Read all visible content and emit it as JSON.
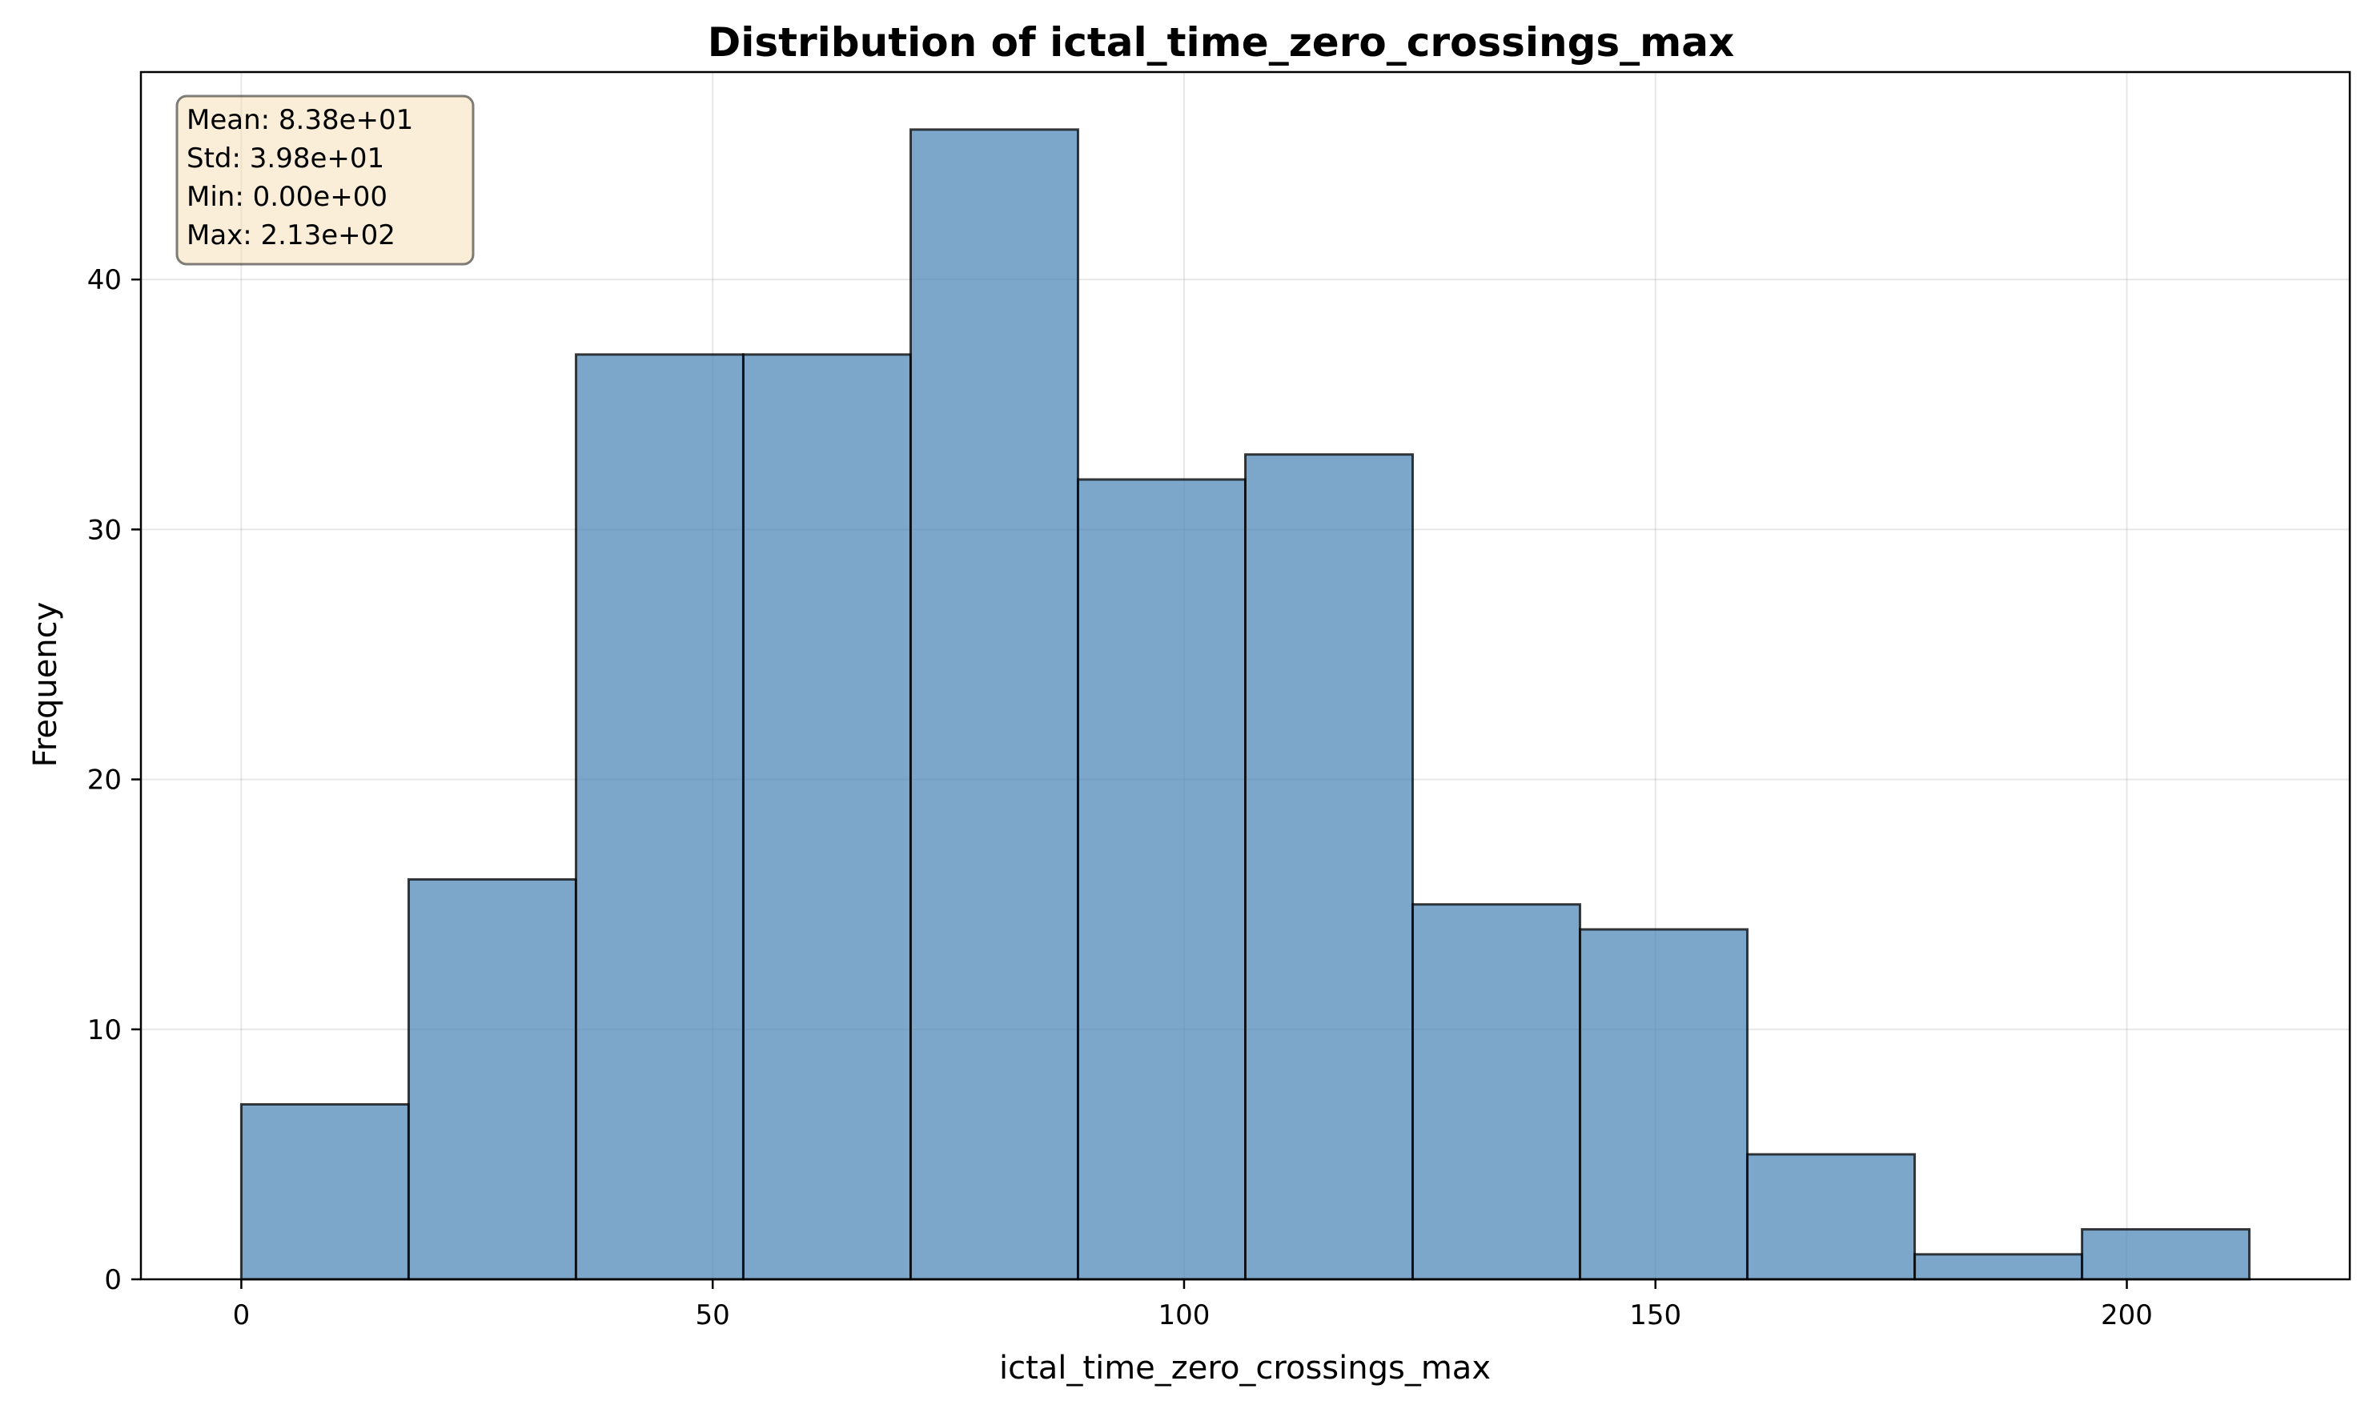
{
  "chart_data": {
    "type": "bar",
    "title": "Distribution of ictal_time_zero_crossings_max",
    "xlabel": "ictal_time_zero_crossings_max",
    "ylabel": "Frequency",
    "bin_edges": [
      0,
      17.75,
      35.5,
      53.25,
      71.0,
      88.75,
      106.5,
      124.25,
      142.0,
      159.75,
      177.5,
      195.25,
      213.0
    ],
    "values": [
      7,
      16,
      37,
      37,
      46,
      32,
      33,
      15,
      14,
      5,
      1,
      2
    ],
    "xlim": [
      -10.65,
      223.65
    ],
    "ylim": [
      0,
      48.3
    ],
    "xticks": [
      0,
      50,
      100,
      150,
      200
    ],
    "xtick_labels": [
      "0",
      "50",
      "100",
      "150",
      "200"
    ],
    "yticks": [
      0,
      10,
      20,
      30,
      40
    ],
    "ytick_labels": [
      "0",
      "10",
      "20",
      "30",
      "40"
    ],
    "grid": true,
    "bar_color": "#4682b4",
    "bar_opacity": 0.7,
    "edge_color": "#000000",
    "stats_box": {
      "lines": [
        "Mean: 8.38e+01",
        "Std: 3.98e+01",
        "Min: 0.00e+00",
        "Max: 2.13e+02"
      ],
      "placement": "top-left",
      "background": "#f5deb3"
    }
  }
}
